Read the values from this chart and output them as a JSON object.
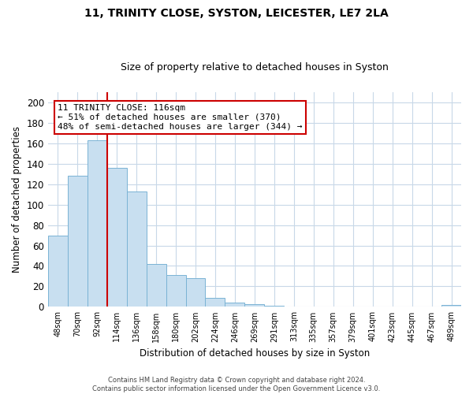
{
  "title": "11, TRINITY CLOSE, SYSTON, LEICESTER, LE7 2LA",
  "subtitle": "Size of property relative to detached houses in Syston",
  "xlabel": "Distribution of detached houses by size in Syston",
  "ylabel": "Number of detached properties",
  "bar_labels": [
    "48sqm",
    "70sqm",
    "92sqm",
    "114sqm",
    "136sqm",
    "158sqm",
    "180sqm",
    "202sqm",
    "224sqm",
    "246sqm",
    "269sqm",
    "291sqm",
    "313sqm",
    "335sqm",
    "357sqm",
    "379sqm",
    "401sqm",
    "423sqm",
    "445sqm",
    "467sqm",
    "489sqm"
  ],
  "bar_values": [
    70,
    128,
    163,
    136,
    113,
    42,
    31,
    28,
    9,
    4,
    3,
    1,
    0,
    0,
    0,
    0,
    0,
    0,
    0,
    0,
    2
  ],
  "bar_color": "#c8dff0",
  "bar_edge_color": "#7ab3d4",
  "vline_color": "#cc0000",
  "annotation_text": "11 TRINITY CLOSE: 116sqm\n← 51% of detached houses are smaller (370)\n48% of semi-detached houses are larger (344) →",
  "annotation_box_color": "#ffffff",
  "annotation_box_edge": "#cc0000",
  "ylim": [
    0,
    210
  ],
  "yticks": [
    0,
    20,
    40,
    60,
    80,
    100,
    120,
    140,
    160,
    180,
    200
  ],
  "footer_line1": "Contains HM Land Registry data © Crown copyright and database right 2024.",
  "footer_line2": "Contains public sector information licensed under the Open Government Licence v3.0.",
  "bg_color": "#ffffff",
  "grid_color": "#c8d8e8",
  "title_fontsize": 10,
  "subtitle_fontsize": 9
}
